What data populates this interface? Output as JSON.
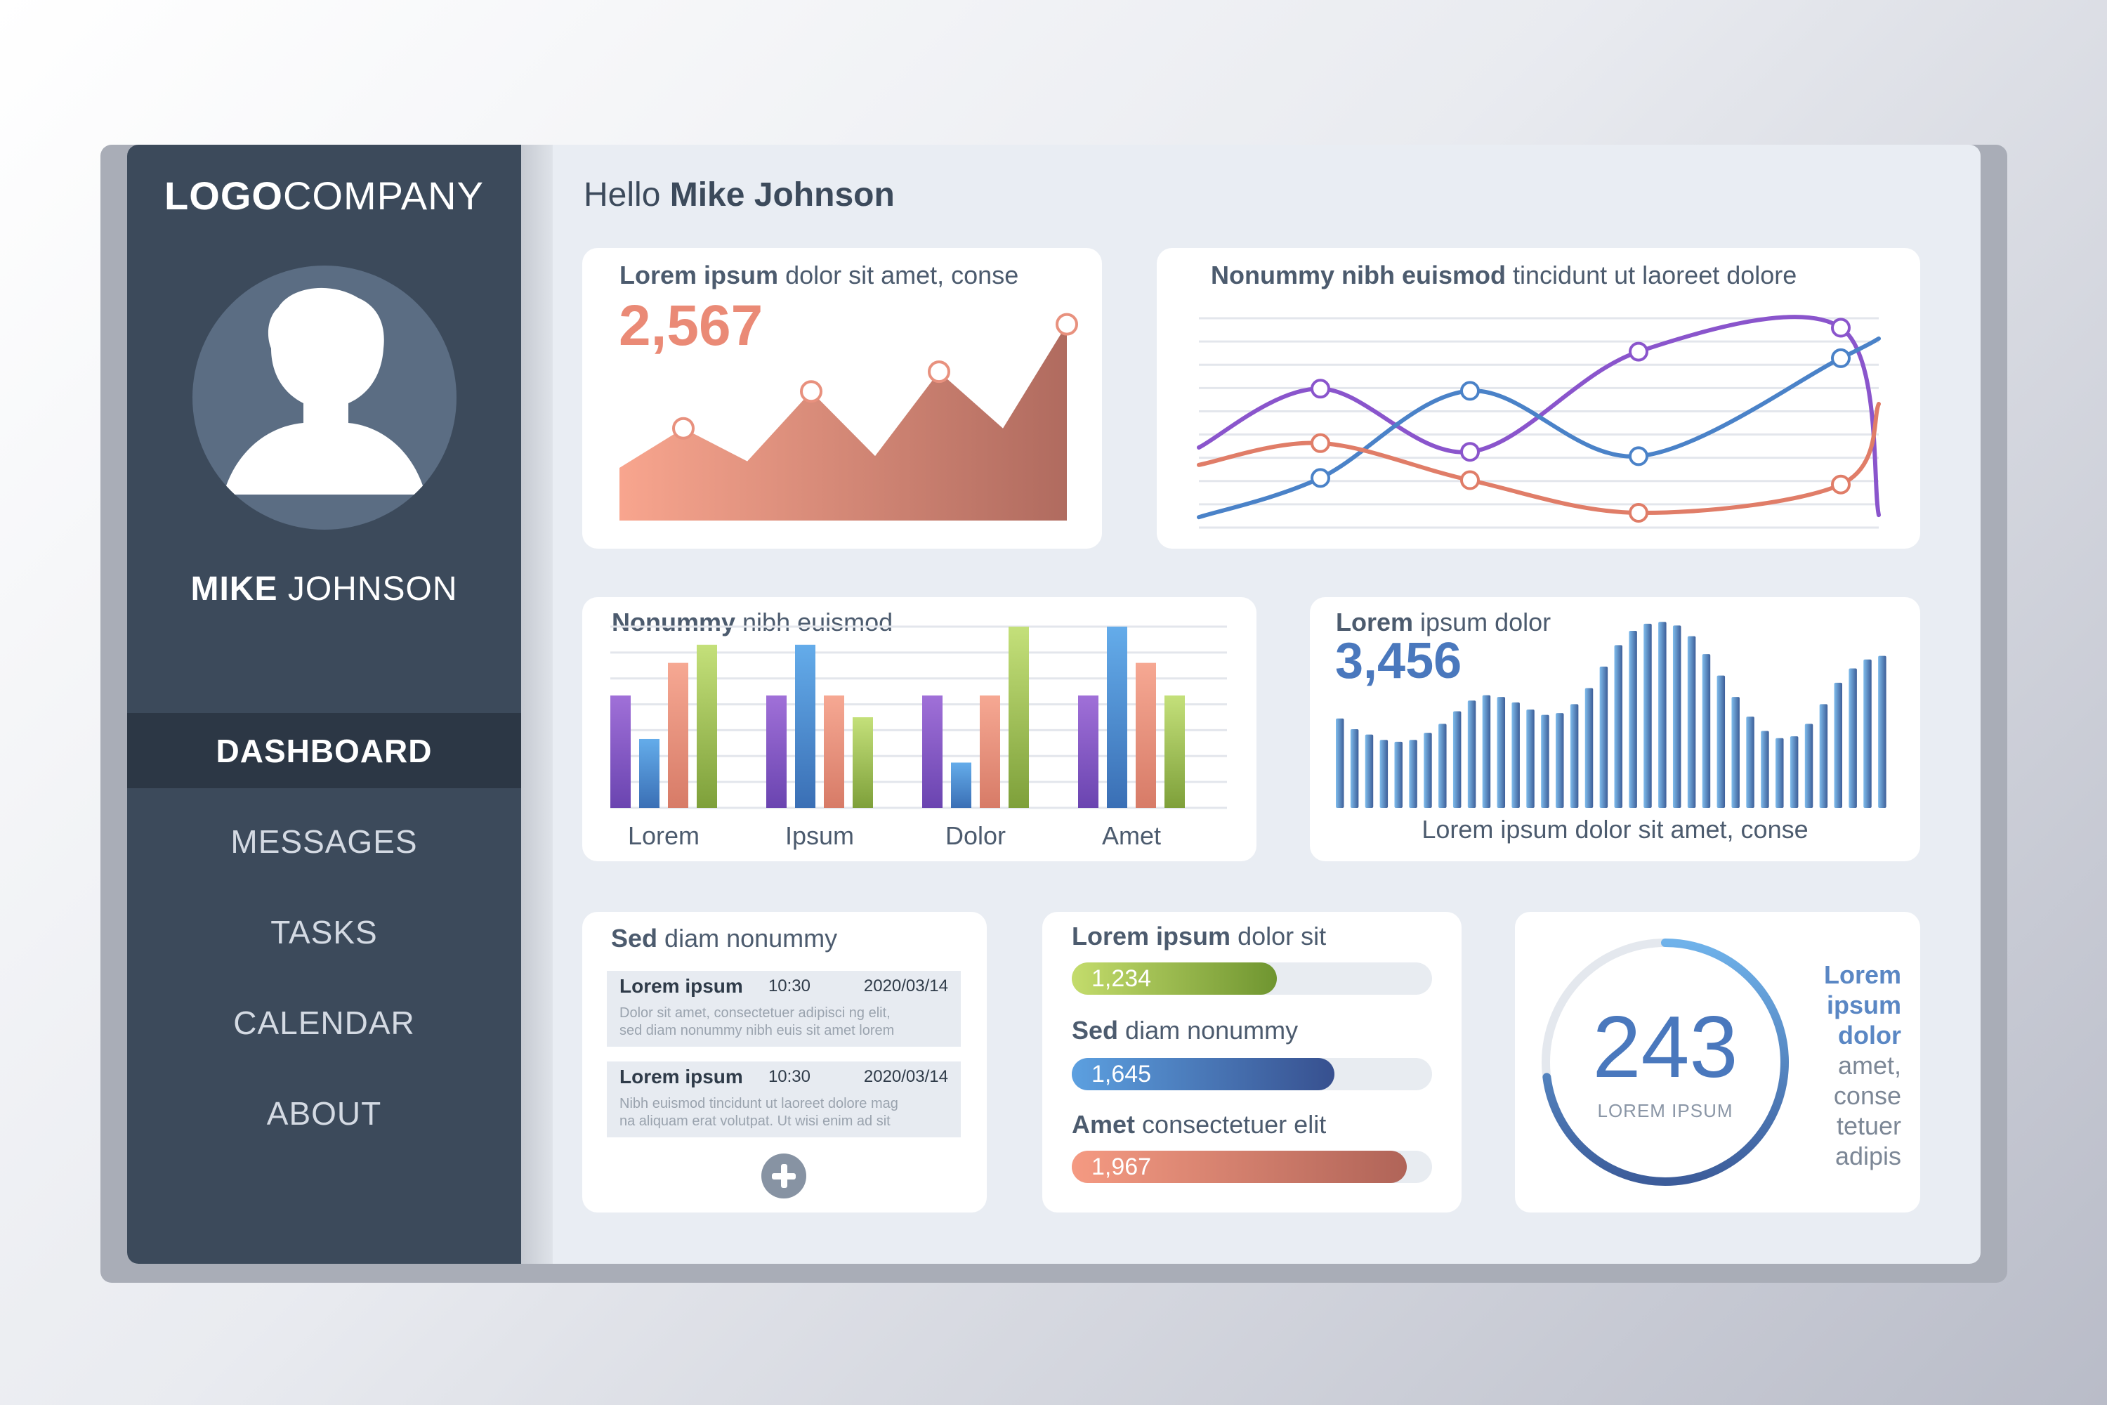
{
  "logo": {
    "bold": "LOGO",
    "rest": "COMPANY"
  },
  "user": {
    "first": "MIKE",
    "last": "JOHNSON"
  },
  "nav": [
    {
      "label": "DASHBOARD",
      "active": true
    },
    {
      "label": "MESSAGES",
      "active": false
    },
    {
      "label": "TASKS",
      "active": false
    },
    {
      "label": "CALENDAR",
      "active": false
    },
    {
      "label": "ABOUT",
      "active": false
    }
  ],
  "greeting": {
    "prefix": "Hello",
    "name": "Mike Johnson"
  },
  "area_card": {
    "title_bold": "Lorem ipsum",
    "title_rest": "dolor sit amet, conse",
    "value": "2,567"
  },
  "lines_card": {
    "title_bold": "Nonummy nibh euismod",
    "title_rest": "tincidunt ut laoreet dolore"
  },
  "bars_card": {
    "title_bold": "Nonummy",
    "title_rest": "nibh euismod"
  },
  "wave_card": {
    "title_bold": "Lorem",
    "title_rest": "ipsum dolor",
    "value": "3,456",
    "caption": "Lorem ipsum dolor sit amet, conse"
  },
  "messages_card": {
    "title_bold": "Sed",
    "title_rest": "diam nonummy",
    "items": [
      {
        "title": "Lorem ipsum",
        "time": "10:30",
        "date": "2020/03/14",
        "line1": "Dolor sit amet, consectetuer adipisci ng elit,",
        "line2": "sed diam nonummy nibh euis sit amet lorem"
      },
      {
        "title": "Lorem ipsum",
        "time": "10:30",
        "date": "2020/03/14",
        "line1": "Nibh euismod tincidunt ut laoreet dolore mag",
        "line2": "na aliquam erat volutpat. Ut wisi enim ad sit"
      }
    ]
  },
  "progress_card": {
    "items": [
      {
        "bold": "Lorem ipsum",
        "rest": "dolor sit",
        "value": "1,234",
        "fraction": 0.57,
        "color_from": "#c4dc6c",
        "color_to": "#6f9530"
      },
      {
        "bold": "Sed",
        "rest": "diam nonummy",
        "value": "1,645",
        "fraction": 0.73,
        "color_from": "#5ca0e0",
        "color_to": "#37508f"
      },
      {
        "bold": "Amet",
        "rest": "consectetuer elit",
        "value": "1,967",
        "fraction": 0.93,
        "color_from": "#f59a82",
        "color_to": "#b06458"
      }
    ]
  },
  "gauge_card": {
    "value": "243",
    "sub": "LOREM IPSUM",
    "fraction": 0.73,
    "side_bold": [
      "Lorem",
      "ipsum",
      "dolor"
    ],
    "side_rest": [
      "amet,",
      "conse",
      "tetuer",
      "adipis"
    ]
  },
  "chart_data": [
    {
      "type": "area",
      "x": [
        1,
        2,
        3,
        4,
        5,
        6,
        7,
        8
      ],
      "values": [
        40,
        70,
        45,
        98,
        49,
        113,
        70,
        149
      ],
      "markers_at": [
        2,
        4,
        6,
        8
      ],
      "ylim": [
        0,
        160
      ],
      "color_from": "#f8a58e",
      "color_to": "#b06b5f"
    },
    {
      "type": "line",
      "x": [
        0,
        1,
        2,
        3,
        4,
        5
      ],
      "ylim": [
        0,
        100
      ],
      "series": [
        {
          "values": [
            40,
            67,
            38,
            84,
            95,
            9
          ],
          "color": "#8a55cc"
        },
        {
          "values": [
            8,
            26,
            66,
            36,
            81,
            90
          ],
          "color": "#4a82c8"
        },
        {
          "values": [
            32,
            42,
            25,
            10,
            23,
            60
          ],
          "color": "#e07d68"
        }
      ]
    },
    {
      "type": "bar",
      "categories": [
        "Lorem",
        "Ipsum",
        "Dolor",
        "Amet"
      ],
      "ylim": [
        0,
        100
      ],
      "series": [
        {
          "values": [
            62,
            62,
            62,
            62
          ],
          "color_from": "#a070d8",
          "color_to": "#6a44b0"
        },
        {
          "values": [
            38,
            90,
            25,
            100
          ],
          "color_from": "#64acea",
          "color_to": "#3a6fb5"
        },
        {
          "values": [
            80,
            62,
            62,
            80
          ],
          "color_from": "#f6a893",
          "color_to": "#d77b67"
        },
        {
          "values": [
            90,
            50,
            100,
            62
          ],
          "color_from": "#c4e07a",
          "color_to": "#7ea03a"
        }
      ]
    },
    {
      "type": "bar",
      "values": [
        50,
        44,
        41,
        38,
        37,
        38,
        42,
        47,
        54,
        60,
        63,
        62,
        59,
        55,
        52,
        53,
        58,
        67,
        79,
        91,
        99,
        103,
        104,
        102,
        96,
        86,
        74,
        62,
        51,
        43,
        39,
        40,
        47,
        58,
        70,
        78,
        83,
        85
      ],
      "ylim": [
        0,
        110
      ],
      "color_from": "#7fbcec",
      "color_to": "#3d5e98"
    }
  ]
}
